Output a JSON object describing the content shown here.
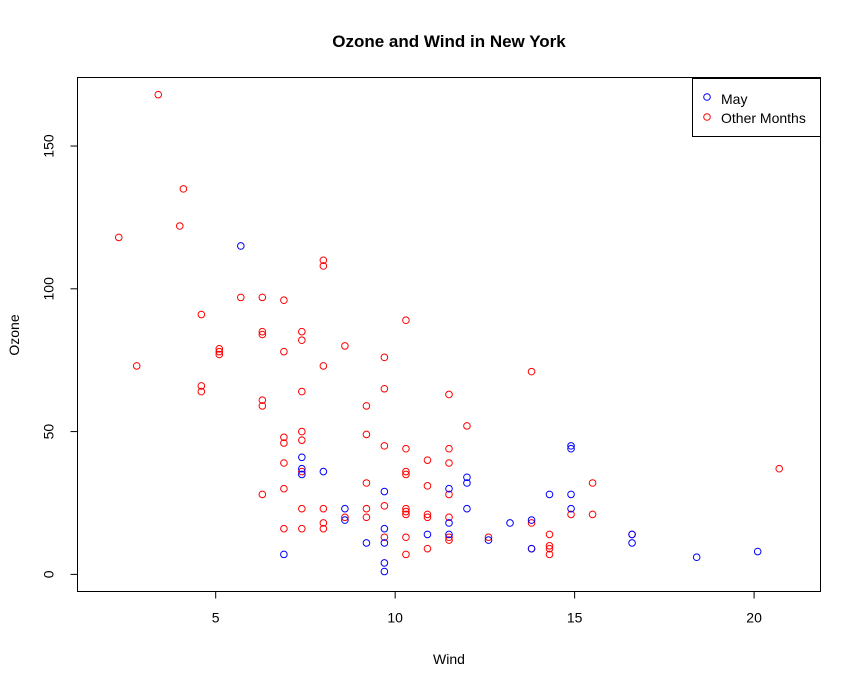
{
  "chart_data": {
    "type": "scatter",
    "title": "Ozone and Wind in New York",
    "xlabel": "Wind",
    "ylabel": "Ozone",
    "xlim": [
      1.15,
      21.85
    ],
    "ylim": [
      -6,
      174
    ],
    "x_ticks": [
      5,
      10,
      15,
      20
    ],
    "y_ticks": [
      0,
      50,
      100,
      150
    ],
    "grid": false,
    "legend_position": "top-right",
    "colors": {
      "May": "#0000ff",
      "Other Months": "#ff0000",
      "axis": "#000000"
    },
    "legend": [
      "May",
      "Other Months"
    ],
    "series": [
      {
        "name": "May",
        "color": "#0000ff",
        "points": [
          [
            7.4,
            41
          ],
          [
            8.0,
            36
          ],
          [
            12.6,
            12
          ],
          [
            11.5,
            18
          ],
          [
            14.3,
            28
          ],
          [
            14.9,
            23
          ],
          [
            8.6,
            19
          ],
          [
            13.8,
            9
          ],
          [
            20.1,
            8
          ],
          [
            8.6,
            23
          ],
          [
            6.9,
            7
          ],
          [
            9.7,
            16
          ],
          [
            9.2,
            11
          ],
          [
            10.9,
            14
          ],
          [
            13.2,
            18
          ],
          [
            11.5,
            14
          ],
          [
            12.0,
            34
          ],
          [
            18.4,
            6
          ],
          [
            11.5,
            30
          ],
          [
            9.7,
            11
          ],
          [
            9.7,
            1
          ],
          [
            16.6,
            11
          ],
          [
            9.7,
            4
          ],
          [
            12.0,
            32
          ],
          [
            5.7,
            115
          ],
          [
            14.9,
            45
          ],
          [
            7.4,
            37
          ],
          [
            14.9,
            28
          ],
          [
            12.0,
            23
          ],
          [
            9.7,
            29
          ],
          [
            13.8,
            19
          ],
          [
            16.6,
            14
          ],
          [
            14.9,
            44
          ],
          [
            7.4,
            35
          ]
        ]
      },
      {
        "name": "Other Months",
        "color": "#ff0000",
        "points": [
          [
            3.4,
            168
          ],
          [
            2.3,
            118
          ],
          [
            4.0,
            122
          ],
          [
            4.1,
            135
          ],
          [
            2.8,
            73
          ],
          [
            5.7,
            97
          ],
          [
            6.3,
            97
          ],
          [
            6.9,
            96
          ],
          [
            8.0,
            110
          ],
          [
            8.0,
            108
          ],
          [
            10.3,
            89
          ],
          [
            6.3,
            85
          ],
          [
            6.3,
            84
          ],
          [
            7.4,
            85
          ],
          [
            7.4,
            82
          ],
          [
            5.1,
            79
          ],
          [
            5.1,
            78
          ],
          [
            5.1,
            77
          ],
          [
            8.6,
            80
          ],
          [
            4.6,
            91
          ],
          [
            6.9,
            78
          ],
          [
            8.0,
            73
          ],
          [
            9.7,
            76
          ],
          [
            13.8,
            71
          ],
          [
            4.6,
            66
          ],
          [
            4.6,
            64
          ],
          [
            7.4,
            64
          ],
          [
            9.7,
            65
          ],
          [
            11.5,
            63
          ],
          [
            6.3,
            61
          ],
          [
            6.3,
            59
          ],
          [
            9.2,
            59
          ],
          [
            12.0,
            52
          ],
          [
            7.4,
            50
          ],
          [
            9.2,
            49
          ],
          [
            6.9,
            48
          ],
          [
            6.9,
            46
          ],
          [
            7.4,
            47
          ],
          [
            9.7,
            45
          ],
          [
            10.3,
            44
          ],
          [
            11.5,
            44
          ],
          [
            10.9,
            40
          ],
          [
            11.5,
            39
          ],
          [
            6.9,
            39
          ],
          [
            7.4,
            36
          ],
          [
            10.3,
            36
          ],
          [
            10.3,
            35
          ],
          [
            20.7,
            37
          ],
          [
            15.5,
            32
          ],
          [
            9.2,
            32
          ],
          [
            10.9,
            31
          ],
          [
            6.9,
            30
          ],
          [
            11.5,
            28
          ],
          [
            6.3,
            28
          ],
          [
            9.7,
            24
          ],
          [
            7.4,
            23
          ],
          [
            8.0,
            23
          ],
          [
            9.2,
            23
          ],
          [
            10.3,
            23
          ],
          [
            10.3,
            22
          ],
          [
            10.3,
            21
          ],
          [
            10.9,
            21
          ],
          [
            14.9,
            21
          ],
          [
            15.5,
            21
          ],
          [
            8.6,
            20
          ],
          [
            9.2,
            20
          ],
          [
            10.9,
            20
          ],
          [
            11.5,
            20
          ],
          [
            8.0,
            18
          ],
          [
            13.8,
            18
          ],
          [
            8.0,
            16
          ],
          [
            6.9,
            16
          ],
          [
            7.4,
            16
          ],
          [
            9.7,
            13
          ],
          [
            10.3,
            13
          ],
          [
            11.5,
            13
          ],
          [
            12.6,
            13
          ],
          [
            14.3,
            14
          ],
          [
            16.6,
            14
          ],
          [
            11.5,
            12
          ],
          [
            14.3,
            10
          ],
          [
            14.3,
            9
          ],
          [
            13.8,
            9
          ],
          [
            10.9,
            9
          ],
          [
            14.3,
            7
          ],
          [
            10.3,
            7
          ]
        ]
      }
    ]
  }
}
